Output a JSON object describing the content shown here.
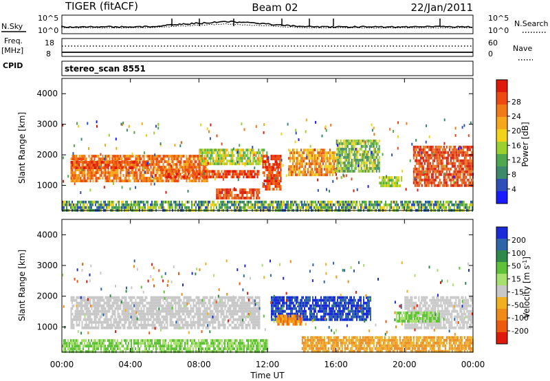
{
  "header": {
    "radar": "TIGER (fitACF)",
    "beam": "Beam 02",
    "date": "22/Jan/2011"
  },
  "noise_panel": {
    "left_label": "N.Sky",
    "right_label": "N.Search",
    "left_ticks": [
      "10^5",
      "10^0"
    ],
    "right_ticks": [
      "10^5",
      "10^0"
    ]
  },
  "freq_panel": {
    "left_label_1": "Freq.",
    "left_label_2": "[MHz]",
    "right_label": "Nave",
    "left_ticks": [
      "18",
      "8"
    ],
    "right_ticks": [
      "60",
      "0"
    ]
  },
  "cpid": {
    "label": "CPID",
    "value": "stereo_scan 8551"
  },
  "chart_data": [
    {
      "type": "heatmap",
      "name": "power",
      "xlabel": "Time UT",
      "ylabel": "Slant Range [km]",
      "xlim": [
        0,
        24
      ],
      "ylim": [
        180,
        4500
      ],
      "x_ticks": [
        "00:00",
        "04:00",
        "08:00",
        "12:00",
        "16:00",
        "20:00",
        "00:00"
      ],
      "y_ticks": [
        1000,
        2000,
        3000,
        4000
      ],
      "colorbar": {
        "label": "Power [dB]",
        "ticks": [
          4,
          8,
          12,
          16,
          20,
          24,
          28
        ],
        "colors": [
          "#1a1aff",
          "#2e4fb8",
          "#3d8a6a",
          "#4fa84f",
          "#9bd12f",
          "#f2d21a",
          "#f5a81c",
          "#f07a18",
          "#ec4a12",
          "#e01a0a"
        ]
      },
      "bands": [
        {
          "t0": 0.5,
          "t1": 8.5,
          "r0": 1100,
          "r1": 2000,
          "level": "20-24"
        },
        {
          "t0": 0.5,
          "t1": 5.0,
          "r0": 1550,
          "r1": 1800,
          "level": "24-28"
        },
        {
          "t0": 6.0,
          "t1": 11.5,
          "r0": 1250,
          "r1": 1500,
          "level": "24-28"
        },
        {
          "t0": 8.0,
          "t1": 12.0,
          "r0": 1700,
          "r1": 2200,
          "level": "12-20"
        },
        {
          "t0": 9.0,
          "t1": 11.5,
          "r0": 600,
          "r1": 900,
          "level": "24-28"
        },
        {
          "t0": 11.7,
          "t1": 12.8,
          "r0": 900,
          "r1": 2000,
          "level": "24-28"
        },
        {
          "t0": 13.2,
          "t1": 16.0,
          "r0": 1300,
          "r1": 2200,
          "level": "16-24"
        },
        {
          "t0": 16.0,
          "t1": 18.5,
          "r0": 1500,
          "r1": 2500,
          "level": "8-16"
        },
        {
          "t0": 18.5,
          "t1": 19.8,
          "r0": 1000,
          "r1": 1300,
          "level": "12-16"
        },
        {
          "t0": 20.5,
          "t1": 24.0,
          "r0": 1000,
          "r1": 2300,
          "level": "24-28"
        },
        {
          "t0": 0.0,
          "t1": 24.0,
          "r0": 180,
          "r1": 500,
          "level": "4-16"
        }
      ]
    },
    {
      "type": "heatmap",
      "name": "velocity",
      "xlabel": "Time UT",
      "ylabel": "Slant Range [km]",
      "xlim": [
        0,
        24
      ],
      "ylim": [
        180,
        4500
      ],
      "x_ticks": [
        "00:00",
        "04:00",
        "08:00",
        "12:00",
        "16:00",
        "20:00",
        "00:00"
      ],
      "y_ticks": [
        1000,
        2000,
        3000,
        4000
      ],
      "colorbar": {
        "label": "Velocity [m s^-1]",
        "ticks": [
          "200",
          "100",
          "50",
          "15",
          "-15",
          "-50",
          "-100",
          "-200"
        ],
        "colors": [
          "#1a2ad8",
          "#2e64a8",
          "#2f8a4a",
          "#5fc03a",
          "#a8e070",
          "#c8c8c8",
          "#f0b020",
          "#f08a18",
          "#ec5a10",
          "#e01a0a"
        ]
      },
      "bands": [
        {
          "t0": 0.5,
          "t1": 11.5,
          "r0": 1000,
          "r1": 2000,
          "level": "-15 to 15"
        },
        {
          "t0": 0.0,
          "t1": 12.0,
          "r0": 200,
          "r1": 600,
          "level": "15-50"
        },
        {
          "t0": 12.2,
          "t1": 18.0,
          "r0": 1200,
          "r1": 2000,
          "level": "100-200"
        },
        {
          "t0": 12.5,
          "t1": 14.0,
          "r0": 1100,
          "r1": 1400,
          "level": "-15 to -100"
        },
        {
          "t0": 14.0,
          "t1": 24.0,
          "r0": 200,
          "r1": 700,
          "level": "-50 to -100"
        },
        {
          "t0": 20.0,
          "t1": 24.0,
          "r0": 1000,
          "r1": 2000,
          "level": "-15 to 15"
        },
        {
          "t0": 19.5,
          "t1": 22.0,
          "r0": 1200,
          "r1": 1500,
          "level": "15-50"
        }
      ]
    }
  ]
}
